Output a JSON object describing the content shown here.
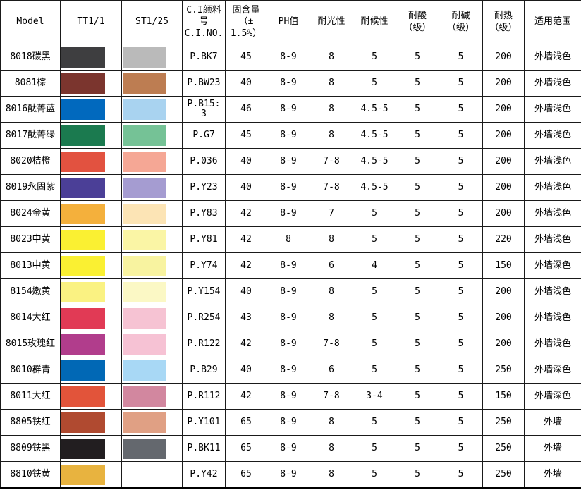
{
  "table": {
    "columns": [
      {
        "key": "model",
        "label": "Model"
      },
      {
        "key": "tt",
        "label": "TT1/1"
      },
      {
        "key": "st",
        "label": "ST1/25"
      },
      {
        "key": "ci",
        "label": "C.I颜料\n号\nC.I.NO."
      },
      {
        "key": "solid",
        "label": "固含量\n（±\n1.5%）"
      },
      {
        "key": "ph",
        "label": "PH值"
      },
      {
        "key": "light",
        "label": "耐光性"
      },
      {
        "key": "weather",
        "label": "耐候性"
      },
      {
        "key": "acid",
        "label": "耐酸\n（级）"
      },
      {
        "key": "alkali",
        "label": "耐碱\n（级）"
      },
      {
        "key": "heat",
        "label": "耐热\n（级）"
      },
      {
        "key": "range",
        "label": "适用范围"
      }
    ],
    "rows": [
      {
        "model": "8018碳黑",
        "tt_color": "#3E3E40",
        "st_color": "#BABABA",
        "ci": "P.BK7",
        "solid": "45",
        "ph": "8-9",
        "light": "8",
        "weather": "5",
        "acid": "5",
        "alkali": "5",
        "heat": "200",
        "range": "外墙浅色"
      },
      {
        "model": "8081棕",
        "tt_color": "#7B352E",
        "st_color": "#BD7D52",
        "ci": "P.BW23",
        "solid": "40",
        "ph": "8-9",
        "light": "8",
        "weather": "5",
        "acid": "5",
        "alkali": "5",
        "heat": "200",
        "range": "外墙浅色"
      },
      {
        "model": "8016酞菁蓝",
        "tt_color": "#0169BE",
        "st_color": "#A9D3F0",
        "ci": "P.B15: 3",
        "solid": "46",
        "ph": "8-9",
        "light": "8",
        "weather": "4.5-5",
        "acid": "5",
        "alkali": "5",
        "heat": "200",
        "range": "外墙浅色"
      },
      {
        "model": "8017酞菁绿",
        "tt_color": "#1B7A4F",
        "st_color": "#75C296",
        "ci": "P.G7",
        "solid": "45",
        "ph": "8-9",
        "light": "8",
        "weather": "4.5-5",
        "acid": "5",
        "alkali": "5",
        "heat": "200",
        "range": "外墙浅色"
      },
      {
        "model": "8020桔橙",
        "tt_color": "#E25240",
        "st_color": "#F5A795",
        "ci": "P.036",
        "solid": "40",
        "ph": "8-9",
        "light": "7-8",
        "weather": "4.5-5",
        "acid": "5",
        "alkali": "5",
        "heat": "200",
        "range": "外墙浅色"
      },
      {
        "model": "8019永固紫",
        "tt_color": "#4B3F97",
        "st_color": "#A59CD1",
        "ci": "P.Y23",
        "solid": "40",
        "ph": "8-9",
        "light": "7-8",
        "weather": "4.5-5",
        "acid": "5",
        "alkali": "5",
        "heat": "200",
        "range": "外墙浅色"
      },
      {
        "model": "8024金黄",
        "tt_color": "#F4B03C",
        "st_color": "#FCE4B5",
        "ci": "P.Y83",
        "solid": "42",
        "ph": "8-9",
        "light": "7",
        "weather": "5",
        "acid": "5",
        "alkali": "5",
        "heat": "200",
        "range": "外墙浅色"
      },
      {
        "model": "8023中黄",
        "tt_color": "#FAF032",
        "st_color": "#FAF5A5",
        "ci": "P.Y81",
        "solid": "42",
        "ph": "8",
        "light": "8",
        "weather": "5",
        "acid": "5",
        "alkali": "5",
        "heat": "220",
        "range": "外墙浅色"
      },
      {
        "model": "8013中黄",
        "tt_color": "#FAF032",
        "st_color": "#F8F3A0",
        "ci": "P.Y74",
        "solid": "42",
        "ph": "8-9",
        "light": "6",
        "weather": "4",
        "acid": "5",
        "alkali": "5",
        "heat": "150",
        "range": "外墙深色"
      },
      {
        "model": "8154嫩黄",
        "tt_color": "#FAF282",
        "st_color": "#FBF8C5",
        "ci": "P.Y154",
        "solid": "40",
        "ph": "8-9",
        "light": "8",
        "weather": "5",
        "acid": "5",
        "alkali": "5",
        "heat": "200",
        "range": "外墙浅色"
      },
      {
        "model": "8014大红",
        "tt_color": "#E13A55",
        "st_color": "#F6C3D3",
        "ci": "P.R254",
        "solid": "43",
        "ph": "8-9",
        "light": "8",
        "weather": "5",
        "acid": "5",
        "alkali": "5",
        "heat": "200",
        "range": "外墙浅色"
      },
      {
        "model": "8015玫瑰红",
        "tt_color": "#B13D8C",
        "st_color": "#F6C2D4",
        "ci": "P.R122",
        "solid": "42",
        "ph": "8-9",
        "light": "7-8",
        "weather": "5",
        "acid": "5",
        "alkali": "5",
        "heat": "200",
        "range": "外墙浅色"
      },
      {
        "model": "8010群青",
        "tt_color": "#0168B5",
        "st_color": "#A8D8F5",
        "ci": "P.B29",
        "solid": "40",
        "ph": "8-9",
        "light": "6",
        "weather": "5",
        "acid": "5",
        "alkali": "5",
        "heat": "250",
        "range": "外墙深色"
      },
      {
        "model": "8011大红",
        "tt_color": "#E2543A",
        "st_color": "#D2879F",
        "ci": "P.R112",
        "solid": "42",
        "ph": "8-9",
        "light": "7-8",
        "weather": "3-4",
        "acid": "5",
        "alkali": "5",
        "heat": "150",
        "range": "外墙深色"
      },
      {
        "model": "8805铁红",
        "tt_color": "#B04A30",
        "st_color": "#E0A084",
        "ci": "P.Y101",
        "solid": "65",
        "ph": "8-9",
        "light": "8",
        "weather": "5",
        "acid": "5",
        "alkali": "5",
        "heat": "250",
        "range": "外墙"
      },
      {
        "model": "8809铁黑",
        "tt_color": "#221E20",
        "st_color": "#64686E",
        "ci": "P.BK11",
        "solid": "65",
        "ph": "8-9",
        "light": "8",
        "weather": "5",
        "acid": "5",
        "alkali": "5",
        "heat": "250",
        "range": "外墙"
      },
      {
        "model": "8810铁黄",
        "tt_color": "#E8B33F",
        "st_color": null,
        "ci": "P.Y42",
        "solid": "65",
        "ph": "8-9",
        "light": "8",
        "weather": "5",
        "acid": "5",
        "alkali": "5",
        "heat": "250",
        "range": "外墙"
      }
    ]
  }
}
